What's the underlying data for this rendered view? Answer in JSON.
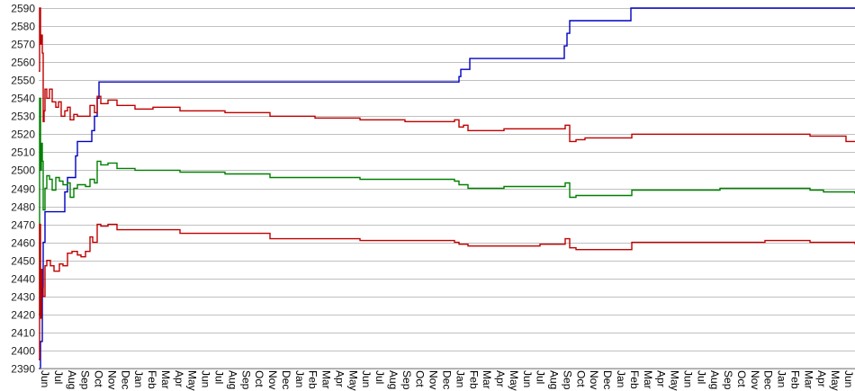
{
  "chart_data": {
    "type": "line",
    "title": "",
    "xlabel": "",
    "ylabel": "",
    "ylim": [
      2390,
      2590
    ],
    "xlim": [
      0,
      907
    ],
    "y_ticks": [
      2390,
      2400,
      2410,
      2420,
      2430,
      2440,
      2450,
      2460,
      2470,
      2480,
      2490,
      2500,
      2510,
      2520,
      2530,
      2540,
      2550,
      2560,
      2570,
      2580,
      2590
    ],
    "x_tick_labels": [
      "Jun",
      "Jul",
      "Aug",
      "Sep",
      "Oct",
      "Nov",
      "Dec",
      "Jan",
      "Feb",
      "Mar",
      "Apr",
      "May",
      "Jun",
      "Jul",
      "Aug",
      "Sep",
      "Oct",
      "Nov",
      "Dec",
      "Jan",
      "Feb",
      "Mar",
      "Apr",
      "May",
      "Jun",
      "Jul",
      "Aug",
      "Sep",
      "Oct",
      "Nov",
      "Dec",
      "Jan",
      "Feb",
      "Mar",
      "Apr",
      "May",
      "Jun",
      "Jul",
      "Aug",
      "Sep",
      "Oct",
      "Nov",
      "Dec",
      "Jan",
      "Feb",
      "Mar",
      "Apr",
      "May",
      "Jun",
      "Jul",
      "Aug",
      "Sep",
      "Oct",
      "Nov",
      "Dec",
      "Jan",
      "Feb",
      "Mar",
      "Apr",
      "May",
      "Jun"
    ],
    "grid": true,
    "legend": "none",
    "series": [
      {
        "color": "#0000c0",
        "points": [
          [
            0,
            2390
          ],
          [
            2,
            2405
          ],
          [
            4,
            2435
          ],
          [
            5,
            2460
          ],
          [
            7,
            2477
          ],
          [
            27,
            2477
          ],
          [
            29,
            2488
          ],
          [
            32,
            2496
          ],
          [
            39,
            2496
          ],
          [
            41,
            2508
          ],
          [
            43,
            2516
          ],
          [
            57,
            2516
          ],
          [
            59,
            2522
          ],
          [
            62,
            2530
          ],
          [
            65,
            2540
          ],
          [
            67,
            2549
          ],
          [
            465,
            2549
          ],
          [
            467,
            2552
          ],
          [
            469,
            2556
          ],
          [
            477,
            2556
          ],
          [
            479,
            2562
          ],
          [
            582,
            2562
          ],
          [
            584,
            2569
          ],
          [
            587,
            2576
          ],
          [
            590,
            2583
          ],
          [
            657,
            2583
          ],
          [
            658,
            2590
          ],
          [
            907,
            2590
          ]
        ]
      },
      {
        "color": "#c00000",
        "points": [
          [
            0,
            2555
          ],
          [
            1,
            2590
          ],
          [
            2,
            2570
          ],
          [
            3,
            2575
          ],
          [
            4,
            2565
          ],
          [
            5,
            2527
          ],
          [
            6,
            2533
          ],
          [
            7,
            2545
          ],
          [
            9,
            2540
          ],
          [
            12,
            2545
          ],
          [
            15,
            2538
          ],
          [
            19,
            2535
          ],
          [
            22,
            2538
          ],
          [
            25,
            2530
          ],
          [
            29,
            2533
          ],
          [
            32,
            2535
          ],
          [
            35,
            2528
          ],
          [
            39,
            2531
          ],
          [
            43,
            2530
          ],
          [
            47,
            2530
          ],
          [
            52,
            2530
          ],
          [
            57,
            2536
          ],
          [
            62,
            2532
          ],
          [
            65,
            2541
          ],
          [
            69,
            2537
          ],
          [
            77,
            2539
          ],
          [
            87,
            2536
          ],
          [
            107,
            2534
          ],
          [
            127,
            2535
          ],
          [
            157,
            2533
          ],
          [
            207,
            2532
          ],
          [
            257,
            2530
          ],
          [
            307,
            2529
          ],
          [
            357,
            2528
          ],
          [
            407,
            2527
          ],
          [
            462,
            2528
          ],
          [
            467,
            2524
          ],
          [
            472,
            2525
          ],
          [
            477,
            2522
          ],
          [
            487,
            2522
          ],
          [
            517,
            2523
          ],
          [
            582,
            2523
          ],
          [
            585,
            2525
          ],
          [
            590,
            2516
          ],
          [
            597,
            2517
          ],
          [
            607,
            2518
          ],
          [
            657,
            2518
          ],
          [
            659,
            2520
          ],
          [
            757,
            2520
          ],
          [
            857,
            2519
          ],
          [
            897,
            2516
          ],
          [
            907,
            2516
          ]
        ]
      },
      {
        "color": "#008000",
        "points": [
          [
            0,
            2420
          ],
          [
            1,
            2540
          ],
          [
            2,
            2500
          ],
          [
            3,
            2515
          ],
          [
            4,
            2505
          ],
          [
            5,
            2478
          ],
          [
            7,
            2490
          ],
          [
            9,
            2497
          ],
          [
            12,
            2495
          ],
          [
            15,
            2489
          ],
          [
            19,
            2496
          ],
          [
            23,
            2494
          ],
          [
            27,
            2492
          ],
          [
            32,
            2493
          ],
          [
            35,
            2485
          ],
          [
            39,
            2490
          ],
          [
            43,
            2492
          ],
          [
            47,
            2492
          ],
          [
            52,
            2491
          ],
          [
            57,
            2495
          ],
          [
            62,
            2493
          ],
          [
            65,
            2505
          ],
          [
            69,
            2503
          ],
          [
            77,
            2504
          ],
          [
            87,
            2501
          ],
          [
            107,
            2500
          ],
          [
            157,
            2499
          ],
          [
            207,
            2498
          ],
          [
            257,
            2496
          ],
          [
            307,
            2496
          ],
          [
            357,
            2495
          ],
          [
            462,
            2494
          ],
          [
            467,
            2492
          ],
          [
            477,
            2490
          ],
          [
            517,
            2491
          ],
          [
            582,
            2491
          ],
          [
            585,
            2493
          ],
          [
            590,
            2485
          ],
          [
            597,
            2486
          ],
          [
            657,
            2486
          ],
          [
            659,
            2489
          ],
          [
            757,
            2490
          ],
          [
            857,
            2489
          ],
          [
            872,
            2488
          ],
          [
            907,
            2487
          ]
        ]
      },
      {
        "color": "#c00000",
        "points": [
          [
            0,
            2395
          ],
          [
            1,
            2470
          ],
          [
            2,
            2418
          ],
          [
            3,
            2445
          ],
          [
            4,
            2435
          ],
          [
            5,
            2430
          ],
          [
            7,
            2447
          ],
          [
            9,
            2450
          ],
          [
            13,
            2447
          ],
          [
            17,
            2444
          ],
          [
            23,
            2448
          ],
          [
            27,
            2447
          ],
          [
            32,
            2454
          ],
          [
            37,
            2455
          ],
          [
            43,
            2453
          ],
          [
            47,
            2452
          ],
          [
            52,
            2455
          ],
          [
            57,
            2463
          ],
          [
            60,
            2460
          ],
          [
            65,
            2470
          ],
          [
            69,
            2469
          ],
          [
            77,
            2470
          ],
          [
            87,
            2467
          ],
          [
            117,
            2467
          ],
          [
            157,
            2465
          ],
          [
            257,
            2462
          ],
          [
            357,
            2461
          ],
          [
            462,
            2460
          ],
          [
            467,
            2459
          ],
          [
            477,
            2458
          ],
          [
            557,
            2459
          ],
          [
            582,
            2459
          ],
          [
            585,
            2462
          ],
          [
            590,
            2457
          ],
          [
            597,
            2456
          ],
          [
            657,
            2456
          ],
          [
            659,
            2460
          ],
          [
            757,
            2460
          ],
          [
            807,
            2461
          ],
          [
            857,
            2460
          ],
          [
            907,
            2459
          ]
        ]
      }
    ]
  }
}
